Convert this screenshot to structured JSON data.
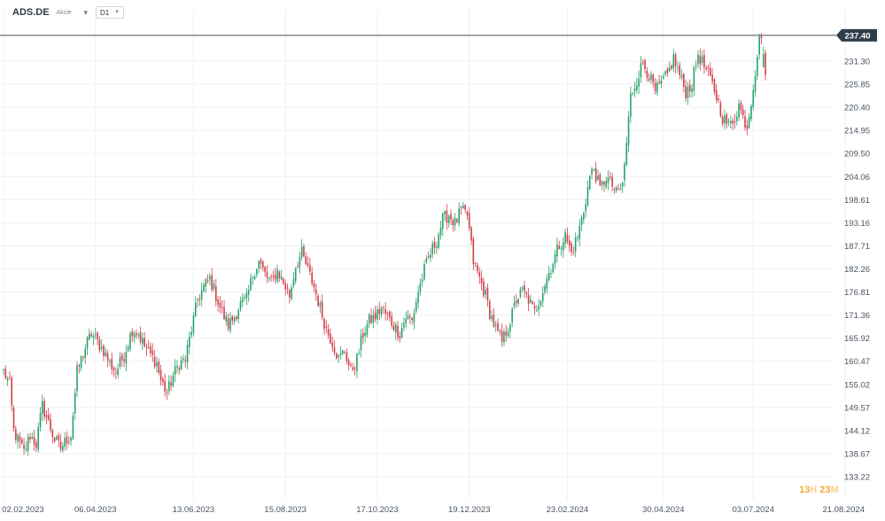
{
  "header": {
    "symbol": "ADS.DE",
    "symbol_type": "Akcie",
    "timeframe": "D1"
  },
  "countdown": {
    "hours": "13",
    "hours_unit": "H",
    "minutes": "23",
    "minutes_unit": "M"
  },
  "colors": {
    "up": "#26a269",
    "down": "#d23c4a",
    "grid": "#eef1f4",
    "axis_text": "#4a5561",
    "price_line": "#44525f",
    "price_label_bg": "#2f3d4a"
  },
  "chart_data": {
    "type": "candlestick",
    "title": "",
    "xlabel": "",
    "ylabel": "",
    "ylim": [
      133.22,
      240.5
    ],
    "y_ticks": [
      "231.30",
      "225.85",
      "220.40",
      "214.95",
      "209.50",
      "204.06",
      "198.61",
      "193.16",
      "187.71",
      "182.26",
      "176.81",
      "171.36",
      "165.92",
      "160.47",
      "155.02",
      "149.57",
      "144.12",
      "138.67",
      "133.22"
    ],
    "x_ticks": [
      "02.02.2023",
      "06.04.2023",
      "13.06.2023",
      "15.08.2023",
      "17.10.2023",
      "19.12.2023",
      "23.02.2024",
      "30.04.2024",
      "03.07.2024",
      "21.08.2024"
    ],
    "x_tick_index": [
      0,
      45,
      93,
      138,
      183,
      228,
      276,
      323,
      367,
      412
    ],
    "current_price": 237.4,
    "current_price_label": "237.40",
    "anchors": [
      [
        0,
        158
      ],
      [
        3,
        155
      ],
      [
        5,
        144
      ],
      [
        8,
        141
      ],
      [
        10,
        139
      ],
      [
        13,
        143
      ],
      [
        16,
        141
      ],
      [
        19,
        150
      ],
      [
        22,
        146
      ],
      [
        25,
        142
      ],
      [
        28,
        140
      ],
      [
        31,
        142
      ],
      [
        33,
        143
      ],
      [
        36,
        158
      ],
      [
        41,
        165
      ],
      [
        43,
        167
      ],
      [
        46,
        165
      ],
      [
        49,
        163
      ],
      [
        52,
        160
      ],
      [
        55,
        158
      ],
      [
        59,
        162
      ],
      [
        63,
        168
      ],
      [
        66,
        167
      ],
      [
        69,
        164
      ],
      [
        72,
        162
      ],
      [
        75,
        160
      ],
      [
        77,
        156
      ],
      [
        80,
        153
      ],
      [
        83,
        157
      ],
      [
        86,
        160
      ],
      [
        89,
        161
      ],
      [
        92,
        168
      ],
      [
        95,
        175
      ],
      [
        98,
        178
      ],
      [
        101,
        180
      ],
      [
        104,
        176
      ],
      [
        107,
        172
      ],
      [
        110,
        169
      ],
      [
        113,
        171
      ],
      [
        116,
        174
      ],
      [
        119,
        175
      ],
      [
        122,
        181
      ],
      [
        125,
        184
      ],
      [
        128,
        181
      ],
      [
        131,
        179
      ],
      [
        134,
        182
      ],
      [
        137,
        179
      ],
      [
        140,
        176
      ],
      [
        143,
        183
      ],
      [
        146,
        186
      ],
      [
        149,
        182
      ],
      [
        152,
        178
      ],
      [
        155,
        173
      ],
      [
        158,
        168
      ],
      [
        161,
        165
      ],
      [
        164,
        161
      ],
      [
        167,
        163
      ],
      [
        170,
        158
      ],
      [
        173,
        161
      ],
      [
        176,
        167
      ],
      [
        179,
        170
      ],
      [
        182,
        171
      ],
      [
        185,
        173
      ],
      [
        188,
        171
      ],
      [
        191,
        169
      ],
      [
        194,
        167
      ],
      [
        197,
        171
      ],
      [
        200,
        170
      ],
      [
        203,
        177
      ],
      [
        206,
        182
      ],
      [
        209,
        186
      ],
      [
        212,
        189
      ],
      [
        215,
        194
      ],
      [
        218,
        195
      ],
      [
        221,
        193
      ],
      [
        224,
        196
      ],
      [
        227,
        195
      ],
      [
        230,
        184
      ],
      [
        233,
        180
      ],
      [
        236,
        176
      ],
      [
        238,
        172
      ],
      [
        241,
        168
      ],
      [
        244,
        165
      ],
      [
        248,
        170
      ],
      [
        251,
        175
      ],
      [
        254,
        177
      ],
      [
        257,
        175
      ],
      [
        260,
        172
      ],
      [
        263,
        176
      ],
      [
        266,
        180
      ],
      [
        269,
        184
      ],
      [
        272,
        188
      ],
      [
        275,
        190
      ],
      [
        278,
        186
      ],
      [
        281,
        190
      ],
      [
        284,
        196
      ],
      [
        287,
        204
      ],
      [
        289,
        206
      ],
      [
        292,
        201
      ],
      [
        295,
        204
      ],
      [
        298,
        202
      ],
      [
        300,
        200
      ],
      [
        303,
        202
      ],
      [
        305,
        212
      ],
      [
        307,
        223
      ],
      [
        310,
        227
      ],
      [
        313,
        231
      ],
      [
        316,
        228
      ],
      [
        319,
        224
      ],
      [
        322,
        226
      ],
      [
        325,
        228
      ],
      [
        328,
        232
      ],
      [
        331,
        228
      ],
      [
        334,
        224
      ],
      [
        337,
        226
      ],
      [
        340,
        233
      ],
      [
        343,
        230
      ],
      [
        346,
        227
      ],
      [
        349,
        223
      ],
      [
        352,
        218
      ],
      [
        355,
        216
      ],
      [
        358,
        218
      ],
      [
        360,
        221
      ],
      [
        362,
        218
      ],
      [
        364,
        216
      ],
      [
        366,
        222
      ],
      [
        368,
        229
      ],
      [
        369,
        233
      ],
      [
        370,
        236
      ],
      [
        371,
        238
      ],
      [
        373,
        228
      ]
    ]
  }
}
